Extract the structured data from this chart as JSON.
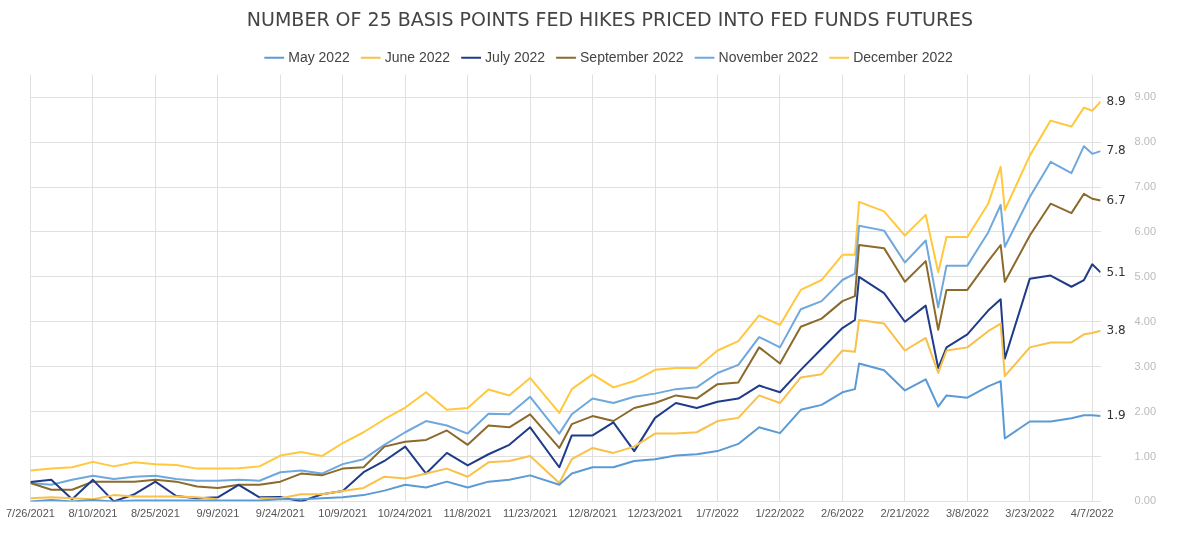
{
  "chart_data": {
    "type": "line",
    "title": "NUMBER OF 25 BASIS POINTS FED HIKES PRICED INTO FED FUNDS FUTURES",
    "x": [
      "2021-07-26",
      "2021-07-31",
      "2021-08-05",
      "2021-08-10",
      "2021-08-15",
      "2021-08-20",
      "2021-08-25",
      "2021-08-30",
      "2021-09-04",
      "2021-09-09",
      "2021-09-14",
      "2021-09-19",
      "2021-09-24",
      "2021-09-29",
      "2021-10-04",
      "2021-10-09",
      "2021-10-14",
      "2021-10-19",
      "2021-10-24",
      "2021-10-29",
      "2021-11-03",
      "2021-11-08",
      "2021-11-13",
      "2021-11-18",
      "2021-11-23",
      "2021-11-30",
      "2021-12-03",
      "2021-12-08",
      "2021-12-13",
      "2021-12-18",
      "2021-12-23",
      "2021-12-28",
      "2022-01-02",
      "2022-01-07",
      "2022-01-12",
      "2022-01-17",
      "2022-01-22",
      "2022-01-27",
      "2022-02-01",
      "2022-02-06",
      "2022-02-09",
      "2022-02-10",
      "2022-02-16",
      "2022-02-21",
      "2022-02-26",
      "2022-03-01",
      "2022-03-03",
      "2022-03-08",
      "2022-03-13",
      "2022-03-16",
      "2022-03-17",
      "2022-03-23",
      "2022-03-28",
      "2022-04-02",
      "2022-04-05",
      "2022-04-07",
      "2022-04-09"
    ],
    "series": [
      {
        "name": "May 2022",
        "color": "#5b9bd5",
        "values": [
          0,
          0.03,
          0,
          0.03,
          0,
          0.02,
          0.02,
          0.02,
          0.02,
          0.02,
          0.02,
          0.02,
          0.05,
          0.05,
          0.07,
          0.09,
          0.14,
          0.24,
          0.37,
          0.31,
          0.44,
          0.31,
          0.44,
          0.48,
          0.58,
          0.37,
          0.62,
          0.76,
          0.76,
          0.9,
          0.94,
          1.02,
          1.05,
          1.12,
          1.28,
          1.65,
          1.52,
          2.04,
          2.15,
          2.43,
          2.5,
          3.07,
          2.92,
          2.47,
          2.72,
          2.11,
          2.36,
          2.31,
          2.56,
          2.68,
          1.4,
          1.78,
          1.78,
          1.85,
          1.92,
          1.92,
          1.9
        ]
      },
      {
        "name": "June 2022",
        "color": "#f9c04a",
        "values": [
          0.07,
          0.09,
          0.07,
          0.05,
          0.14,
          0.11,
          0.11,
          0.11,
          0.09,
          0.05,
          null,
          0.07,
          0.07,
          0.16,
          0.16,
          0.23,
          0.3,
          0.55,
          0.51,
          0.62,
          0.73,
          0.55,
          0.87,
          0.9,
          1.01,
          0.41,
          0.94,
          1.19,
          1.08,
          1.22,
          1.51,
          1.51,
          1.54,
          1.79,
          1.86,
          2.36,
          2.19,
          2.76,
          2.83,
          3.36,
          3.33,
          4.04,
          3.96,
          3.36,
          3.64,
          2.86,
          3.36,
          3.43,
          3.79,
          3.96,
          2.79,
          3.43,
          3.54,
          3.54,
          3.72,
          3.75,
          3.8
        ]
      },
      {
        "name": "July 2022",
        "color": "#1f3c88",
        "values": [
          0.43,
          0.48,
          0.05,
          0.48,
          0,
          0.16,
          0.44,
          0.12,
          0.07,
          0.09,
          0.37,
          0.09,
          0.1,
          0,
          0.16,
          0.23,
          0.65,
          0.9,
          1.22,
          0.62,
          1.08,
          0.8,
          1.05,
          1.26,
          1.65,
          0.76,
          1.47,
          1.47,
          1.76,
          1.12,
          1.86,
          2.19,
          2.08,
          2.22,
          2.29,
          2.58,
          2.43,
          2.93,
          3.4,
          3.86,
          4.04,
          5,
          4.64,
          4,
          4.36,
          2.97,
          3.43,
          3.72,
          4.25,
          4.5,
          3.18,
          4.96,
          5.03,
          4.78,
          4.93,
          5.28,
          5.1
        ]
      },
      {
        "name": "September 2022",
        "color": "#8c6a2c",
        "values": [
          0.41,
          0.26,
          0.26,
          0.44,
          0.44,
          0.44,
          0.48,
          0.44,
          0.33,
          0.3,
          0.37,
          0.37,
          0.44,
          0.62,
          0.58,
          0.73,
          0.76,
          1.22,
          1.33,
          1.37,
          1.58,
          1.26,
          1.69,
          1.65,
          1.94,
          1.19,
          1.72,
          1.9,
          1.79,
          2.08,
          2.19,
          2.36,
          2.29,
          2.61,
          2.65,
          3.43,
          3.07,
          3.89,
          4.07,
          4.46,
          4.57,
          5.71,
          5.64,
          4.89,
          5.35,
          3.82,
          4.71,
          4.71,
          5.35,
          5.71,
          4.89,
          5.92,
          6.63,
          6.42,
          6.85,
          6.74,
          6.7
        ]
      },
      {
        "name": "November 2022",
        "color": "#6fa8dc",
        "values": [
          0.41,
          0.37,
          0.48,
          0.57,
          0.5,
          0.55,
          0.57,
          0.5,
          0.46,
          0.46,
          0.48,
          0.46,
          0.65,
          0.69,
          0.62,
          0.83,
          0.94,
          1.26,
          1.54,
          1.79,
          1.69,
          1.51,
          1.95,
          1.94,
          2.33,
          1.51,
          1.94,
          2.29,
          2.19,
          2.33,
          2.4,
          2.5,
          2.54,
          2.86,
          3.04,
          3.66,
          3.43,
          4.28,
          4.46,
          4.93,
          5.07,
          6.14,
          6.03,
          5.32,
          5.81,
          4.32,
          5.25,
          5.25,
          5.99,
          6.6,
          5.67,
          6.78,
          7.56,
          7.31,
          7.91,
          7.74,
          7.8
        ]
      },
      {
        "name": "December 2022",
        "color": "#ffc83d",
        "values": [
          0.69,
          0.73,
          0.76,
          0.88,
          0.78,
          0.87,
          0.83,
          0.81,
          0.73,
          0.73,
          0.74,
          0.78,
          1.02,
          1.1,
          1.01,
          1.3,
          1.54,
          1.83,
          2.09,
          2.43,
          2.04,
          2.08,
          2.49,
          2.36,
          2.75,
          1.97,
          2.5,
          2.83,
          2.54,
          2.68,
          2.93,
          2.97,
          2.97,
          3.36,
          3.57,
          4.14,
          3.93,
          4.71,
          4.93,
          5.49,
          5.49,
          6.67,
          6.46,
          5.92,
          6.38,
          5.1,
          5.89,
          5.89,
          6.63,
          7.45,
          6.49,
          7.7,
          8.48,
          8.35,
          8.77,
          8.7,
          8.9
        ]
      }
    ],
    "annotations": [
      {
        "text": "1.9",
        "x": "2022-04-09",
        "y": 1.9
      },
      {
        "text": "3.8",
        "x": "2022-04-09",
        "y": 3.8
      },
      {
        "text": "5.1",
        "x": "2022-04-09",
        "y": 5.1
      },
      {
        "text": "6.7",
        "x": "2022-04-09",
        "y": 6.7
      },
      {
        "text": "7.8",
        "x": "2022-04-09",
        "y": 7.8
      },
      {
        "text": "8.9",
        "x": "2022-04-09",
        "y": 8.9
      }
    ],
    "xlim": [
      "2021-07-26",
      "2022-04-09"
    ],
    "xticks": [
      {
        "value": "2021-07-26",
        "label": "7/26/2021"
      },
      {
        "value": "2021-08-10",
        "label": "8/10/2021"
      },
      {
        "value": "2021-08-25",
        "label": "8/25/2021"
      },
      {
        "value": "2021-09-09",
        "label": "9/9/2021"
      },
      {
        "value": "2021-09-24",
        "label": "9/24/2021"
      },
      {
        "value": "2021-10-09",
        "label": "10/9/2021"
      },
      {
        "value": "2021-10-24",
        "label": "10/24/2021"
      },
      {
        "value": "2021-11-08",
        "label": "11/8/2021"
      },
      {
        "value": "2021-11-23",
        "label": "11/23/2021"
      },
      {
        "value": "2021-12-08",
        "label": "12/8/2021"
      },
      {
        "value": "2021-12-23",
        "label": "12/23/2021"
      },
      {
        "value": "2022-01-07",
        "label": "1/7/2022"
      },
      {
        "value": "2022-01-22",
        "label": "1/22/2022"
      },
      {
        "value": "2022-02-06",
        "label": "2/6/2022"
      },
      {
        "value": "2022-02-21",
        "label": "2/21/2022"
      },
      {
        "value": "2022-03-08",
        "label": "3/8/2022"
      },
      {
        "value": "2022-03-23",
        "label": "3/23/2022"
      },
      {
        "value": "2022-04-07",
        "label": "4/7/2022"
      }
    ],
    "ylim": [
      0,
      9.5
    ],
    "yticks": [
      {
        "value": 0,
        "label": "0.00"
      },
      {
        "value": 1,
        "label": "1.00"
      },
      {
        "value": 2,
        "label": "2.00"
      },
      {
        "value": 3,
        "label": "3.00"
      },
      {
        "value": 4,
        "label": "4.00"
      },
      {
        "value": 5,
        "label": "5.00"
      },
      {
        "value": 6,
        "label": "6.00"
      },
      {
        "value": 7,
        "label": "7.00"
      },
      {
        "value": 8,
        "label": "8.00"
      },
      {
        "value": 9,
        "label": "9.00"
      }
    ],
    "grid": true,
    "legend": "top",
    "marker": "none",
    "line_style": "solid"
  }
}
